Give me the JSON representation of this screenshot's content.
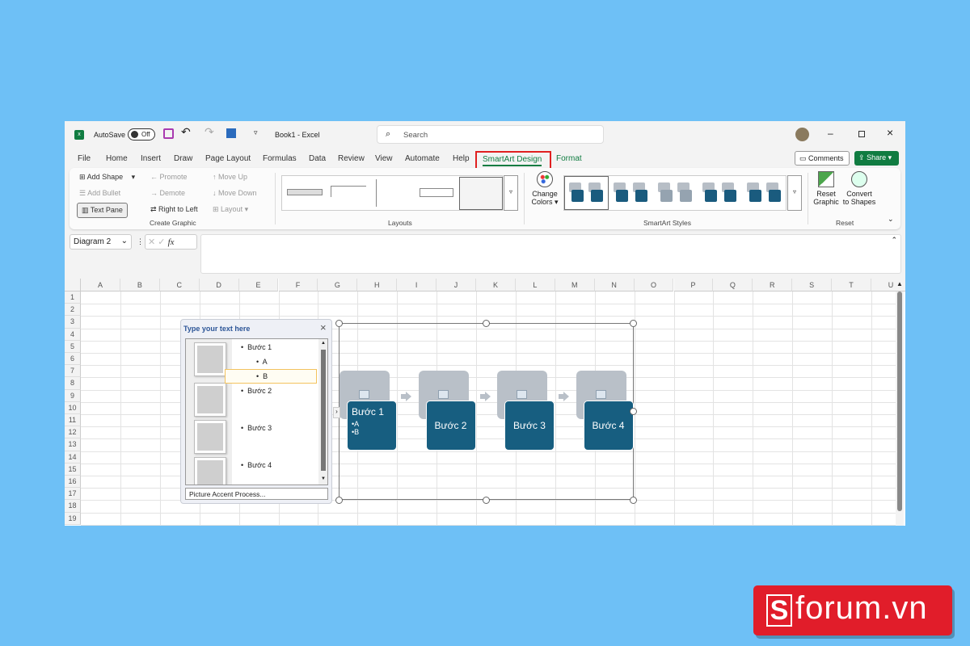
{
  "titlebar": {
    "autosave": "AutoSave",
    "toggle": "Off",
    "title": "Book1 - Excel",
    "search_placeholder": "Search"
  },
  "tabs": [
    "File",
    "Home",
    "Insert",
    "Draw",
    "Page Layout",
    "Formulas",
    "Data",
    "Review",
    "View",
    "Automate",
    "Help",
    "SmartArt Design",
    "Format"
  ],
  "active_tab": "SmartArt Design",
  "actions": {
    "comments": "Comments",
    "share": "Share"
  },
  "ribbon": {
    "create_graphic": {
      "add_shape": "Add Shape",
      "add_bullet": "Add Bullet",
      "text_pane": "Text Pane",
      "promote": "Promote",
      "demote": "Demote",
      "right_to_left": "Right to Left",
      "move_up": "Move Up",
      "move_down": "Move Down",
      "layout": "Layout",
      "label": "Create Graphic"
    },
    "layouts": {
      "label": "Layouts"
    },
    "styles": {
      "change_colors_1": "Change",
      "change_colors_2": "Colors",
      "label": "SmartArt Styles"
    },
    "reset": {
      "reset_1": "Reset",
      "reset_2": "Graphic",
      "convert_1": "Convert",
      "convert_2": "to Shapes",
      "label": "Reset"
    }
  },
  "formula_bar": {
    "name_box": "Diagram 2",
    "fx": "fx",
    "value": ""
  },
  "columns": [
    "A",
    "B",
    "C",
    "D",
    "E",
    "F",
    "G",
    "H",
    "I",
    "J",
    "K",
    "L",
    "M",
    "N",
    "O",
    "P",
    "Q",
    "R",
    "S",
    "T",
    "U"
  ],
  "rows": [
    "1",
    "2",
    "3",
    "4",
    "5",
    "6",
    "7",
    "8",
    "9",
    "10",
    "11",
    "12",
    "13",
    "14",
    "15",
    "16",
    "17",
    "18",
    "19"
  ],
  "text_pane": {
    "title": "Type your text here",
    "items": [
      "Bước 1",
      "A",
      "B",
      "Bước 2",
      "Bước 3",
      "Bước 4"
    ],
    "footer": "Picture Accent Process..."
  },
  "smartart": {
    "steps": [
      {
        "title": "Bước 1",
        "bullets": [
          "•A",
          "•B"
        ]
      },
      {
        "title": "Bước 2"
      },
      {
        "title": "Bước 3"
      },
      {
        "title": "Bước 4"
      }
    ]
  },
  "watermark": {
    "text": "forum.vn",
    "logo_letter": "S"
  },
  "colors": {
    "accent": "#107c41",
    "highlight": "#e02020",
    "shape": "#175e80",
    "background": "#6ec0f6"
  }
}
